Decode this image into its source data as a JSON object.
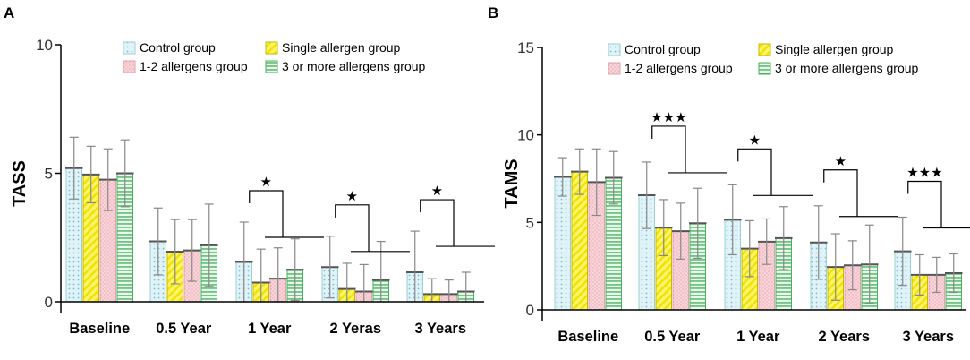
{
  "chart_data": [
    {
      "panel": "A",
      "type": "bar",
      "ylabel": "TASS",
      "xlabel": "",
      "ylim": [
        0,
        10
      ],
      "yticks": [
        "0",
        "5",
        "10"
      ],
      "categories": [
        "Baseline",
        "0.5 Year",
        "1 Year",
        "2 Yeras",
        "3 Years"
      ],
      "series": [
        {
          "name": "Control group",
          "values": [
            5.2,
            2.35,
            1.55,
            1.35,
            1.15
          ],
          "sd": [
            1.2,
            1.3,
            1.55,
            1.2,
            1.6
          ]
        },
        {
          "name": "Single allergen group",
          "values": [
            4.95,
            1.95,
            0.75,
            0.5,
            0.3
          ],
          "sd": [
            1.1,
            1.25,
            1.3,
            1.0,
            0.6
          ]
        },
        {
          "name": "1-2 allergens group",
          "values": [
            4.75,
            2.0,
            0.9,
            0.4,
            0.3
          ],
          "sd": [
            1.2,
            1.2,
            1.2,
            1.05,
            0.55
          ]
        },
        {
          "name": "3 or more allergens group",
          "values": [
            5.0,
            2.2,
            1.25,
            0.85,
            0.4
          ],
          "sd": [
            1.3,
            1.6,
            1.2,
            1.5,
            0.75
          ]
        }
      ],
      "significance": [
        {
          "category": "1 Year",
          "label": "★"
        },
        {
          "category": "2 Yeras",
          "label": "★"
        },
        {
          "category": "3 Years",
          "label": "★"
        }
      ]
    },
    {
      "panel": "B",
      "type": "bar",
      "ylabel": "TAMS",
      "xlabel": "",
      "ylim": [
        0,
        15
      ],
      "yticks": [
        "0",
        "5",
        "10",
        "15"
      ],
      "categories": [
        "Baseline",
        "0.5 Year",
        "1 Year",
        "2 Years",
        "3 Years"
      ],
      "series": [
        {
          "name": "Control group",
          "values": [
            7.6,
            6.55,
            5.15,
            3.85,
            3.35
          ],
          "sd": [
            1.1,
            1.9,
            2.0,
            2.1,
            1.95
          ]
        },
        {
          "name": "Single allergen group",
          "values": [
            7.9,
            4.7,
            3.5,
            2.45,
            2.0
          ],
          "sd": [
            1.3,
            1.6,
            1.6,
            1.9,
            1.15
          ]
        },
        {
          "name": "1-2 allergens group",
          "values": [
            7.3,
            4.5,
            3.9,
            2.55,
            2.0
          ],
          "sd": [
            1.9,
            1.6,
            1.3,
            1.4,
            1.0
          ]
        },
        {
          "name": "3 or more allergens group",
          "values": [
            7.55,
            4.95,
            4.1,
            2.6,
            2.1
          ],
          "sd": [
            1.5,
            2.0,
            1.8,
            2.25,
            1.1
          ]
        }
      ],
      "significance": [
        {
          "category": "0.5 Year",
          "label": "★★★"
        },
        {
          "category": "1 Year",
          "label": "★"
        },
        {
          "category": "2 Years",
          "label": "★"
        },
        {
          "category": "3 Years",
          "label": "★★★"
        }
      ]
    }
  ],
  "series_colors": [
    "#d6f0f6",
    "#f7f023",
    "#f6cbd0",
    "#c9efd2"
  ],
  "series_edge_colors": [
    "#9ccfd8",
    "#c9b800",
    "#e0a4ac",
    "#4caf60"
  ]
}
